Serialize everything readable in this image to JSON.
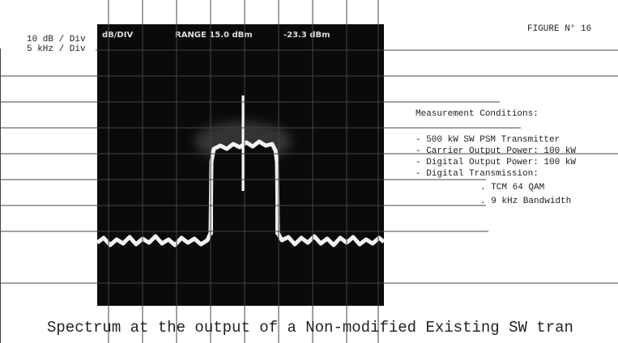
{
  "figure": {
    "number": "FIGURE N° 16",
    "scale": [
      "10 dB / Div",
      "5 kHz / Div"
    ],
    "screen_header": [
      "dB/DIV",
      "RANGE 15.0 dBm",
      "-23.3 dBm"
    ],
    "conditions": {
      "title": "Measurement Conditions:",
      "items": [
        "- 500 kW SW PSM Transmitter",
        "- Carrier Output Power: 100 kW",
        "- Digital Output Power: 100 kW",
        "- Digital Transmission:",
        ". TCM 64 QAM",
        ". 9 kHz Bandwidth"
      ]
    },
    "caption": "Spectrum at the output of a Non-modified Existing SW tran"
  }
}
